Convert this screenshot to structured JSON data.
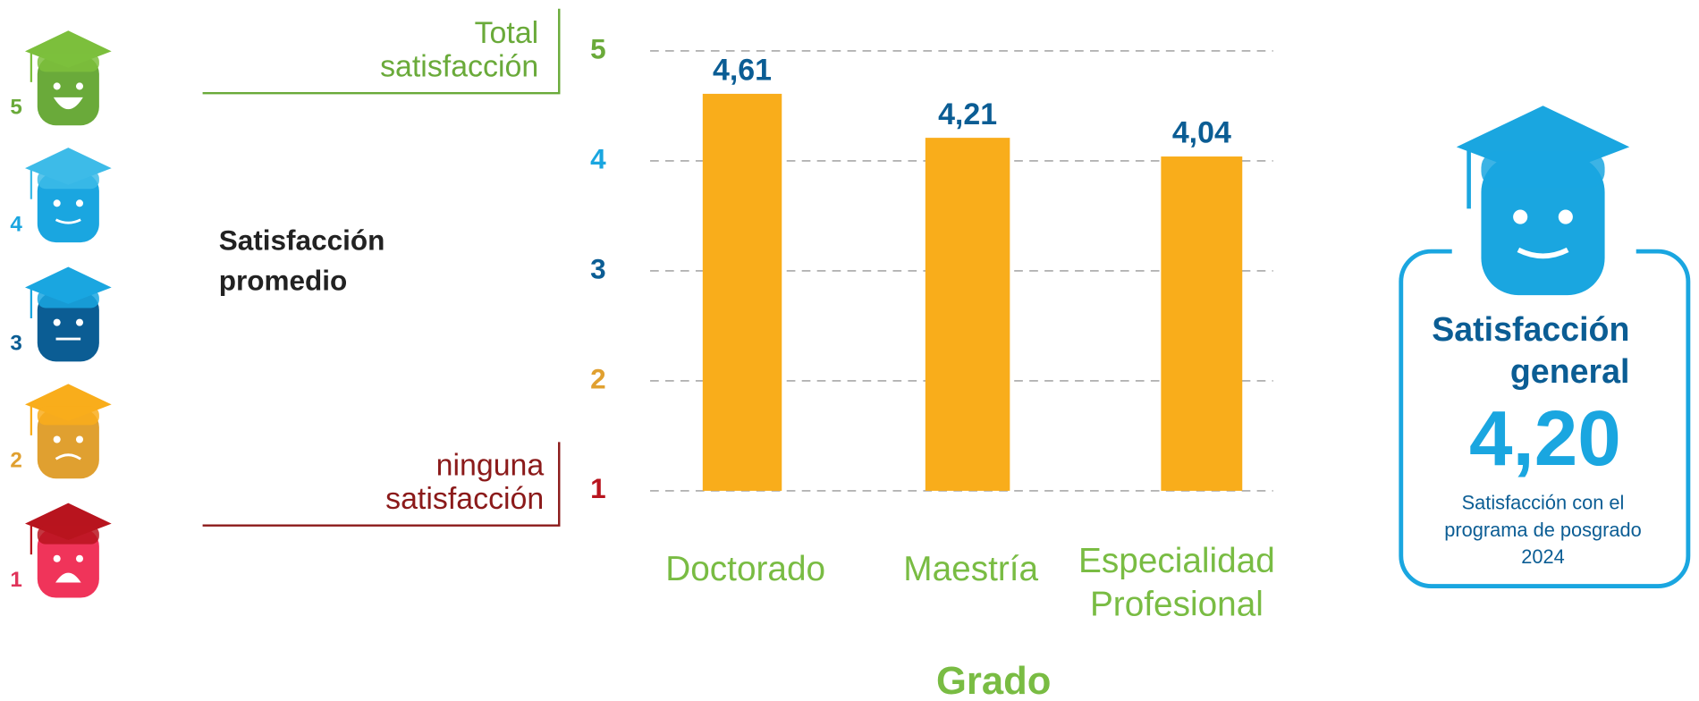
{
  "chart_data": {
    "type": "bar",
    "categories": [
      "Doctorado",
      "Maestría",
      "Especialidad\nProfesional"
    ],
    "values": [
      4.61,
      4.21,
      4.04
    ],
    "value_labels": [
      "4,61",
      "4,21",
      "4,04"
    ],
    "color": "#f9ad1b",
    "value_label_color": "#0b5d94",
    "category_color": "#79bc43",
    "ylim": [
      1,
      5
    ],
    "yticks": [
      1,
      2,
      3,
      4,
      5
    ],
    "ytick_colors": [
      "#b8141e",
      "#e0a030",
      "#0b5d94",
      "#1aa6e0",
      "#6aaa3a"
    ],
    "grid": true,
    "xlabel": "Grado"
  },
  "legend": {
    "title": "Satisfacción\npromedio",
    "top_label": "Total\nsatisfacción",
    "bottom_label": "ninguna\nsatisfacción",
    "levels": [
      "5",
      "4",
      "3",
      "2",
      "1"
    ]
  },
  "card": {
    "title": "Satisfacción\ngeneral",
    "value": "4,20",
    "caption": "Satisfacción con el\nprograma de posgrado\n2024"
  }
}
